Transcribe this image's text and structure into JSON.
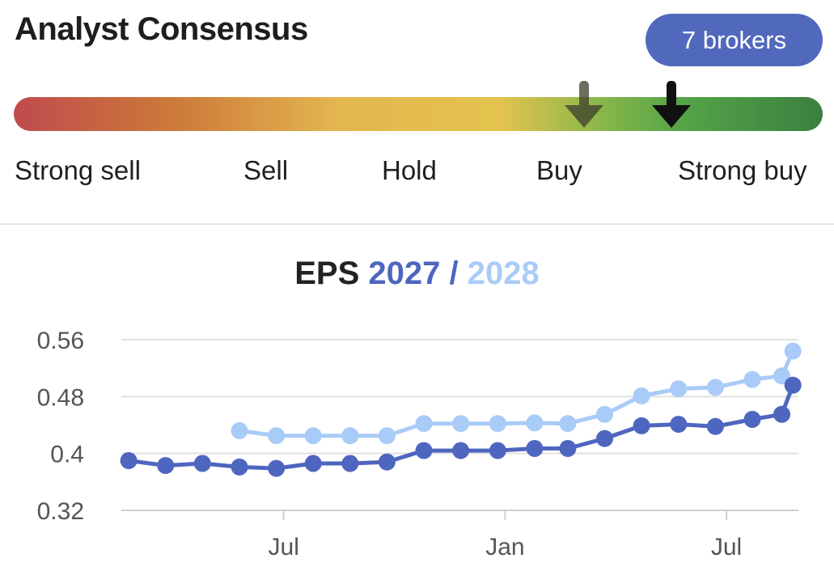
{
  "header": {
    "title": "Analyst Consensus",
    "brokers_badge": "7 brokers"
  },
  "consensus_scale": {
    "labels": [
      "Strong sell",
      "Sell",
      "Hold",
      "Buy",
      "Strong buy"
    ],
    "markers": [
      {
        "name": "previous-consensus-marker",
        "level_fraction": 0.705,
        "color": "#3d3d2b",
        "opacity": 0.75
      },
      {
        "name": "current-consensus-marker",
        "level_fraction": 0.813,
        "color": "#111111",
        "opacity": 1
      }
    ]
  },
  "chart_title": {
    "prefix": "EPS",
    "series1": "2027",
    "separator": "/",
    "series2": "2028"
  },
  "chart_data": {
    "type": "line",
    "title": "EPS 2027 / 2028",
    "y_ticks": [
      0.56,
      0.48,
      0.4,
      0.32
    ],
    "y_tick_labels": [
      "0.56",
      "0.48",
      "0.4",
      "0.32"
    ],
    "ylim": [
      0.32,
      0.56
    ],
    "x_tick_labels": [
      "Jul",
      "Jan",
      "Jul"
    ],
    "x_tick_positions": [
      4.4,
      10.4,
      16.4
    ],
    "xlim": [
      0,
      18.35
    ],
    "grid": true,
    "series": [
      {
        "name": "2027",
        "color": "#4e66bf",
        "x": [
          0.2,
          1.2,
          2.2,
          3.2,
          4.2,
          5.2,
          6.2,
          7.2,
          8.2,
          9.2,
          10.2,
          11.2,
          12.1,
          13.1,
          14.1,
          15.1,
          16.1,
          17.1,
          17.9,
          18.2
        ],
        "values": [
          0.39,
          0.383,
          0.386,
          0.381,
          0.379,
          0.386,
          0.386,
          0.388,
          0.404,
          0.404,
          0.404,
          0.407,
          0.407,
          0.421,
          0.439,
          0.441,
          0.438,
          0.448,
          0.455,
          0.496
        ]
      },
      {
        "name": "2028",
        "color": "#a9cbf7",
        "x": [
          3.2,
          4.2,
          5.2,
          6.2,
          7.2,
          8.2,
          9.2,
          10.2,
          11.2,
          12.1,
          13.1,
          14.1,
          15.1,
          16.1,
          17.1,
          17.9,
          18.2
        ],
        "values": [
          0.432,
          0.425,
          0.425,
          0.425,
          0.425,
          0.442,
          0.442,
          0.442,
          0.443,
          0.442,
          0.455,
          0.481,
          0.491,
          0.493,
          0.504,
          0.509,
          0.544
        ]
      }
    ]
  }
}
